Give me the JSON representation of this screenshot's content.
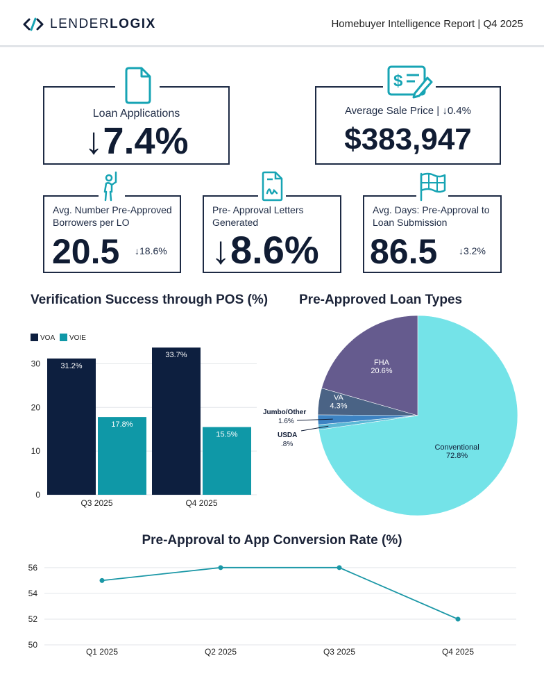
{
  "header": {
    "logo_word_1": "LENDER",
    "logo_word_2": "LOGIX",
    "report_title": "Homebuyer Intelligence Report | Q4 2025"
  },
  "kpis": {
    "loan_applications": {
      "label": "Loan Applications",
      "value": "↓7.4%",
      "icon": "document-icon"
    },
    "avg_sale_price": {
      "label": "Average Sale Price",
      "change": "| ↓0.4%",
      "value": "$383,947",
      "icon": "invoice-pen-icon"
    },
    "borrowers_per_lo": {
      "label": "Avg. Number Pre-Approved Borrowers per LO",
      "value": "20.5",
      "change": "↓18.6%",
      "icon": "person-raising-hand-icon"
    },
    "letters_generated": {
      "label": "Pre- Approval Letters Generated",
      "value": "↓8.6%",
      "icon": "signed-document-icon"
    },
    "days_to_submission": {
      "label": "Avg. Days: Pre-Approval to Loan Submission",
      "value": "86.5",
      "change": "↓3.2%",
      "icon": "finish-flag-icon"
    }
  },
  "colors": {
    "navy": "#0d1f3f",
    "teal": "#0f98a7",
    "cyan_light": "#74e3e8",
    "purple": "#655b8e",
    "slate_blue": "#4a6385",
    "mid_blue": "#3d83c3",
    "line_teal": "#1a97a6"
  },
  "chart_data": [
    {
      "type": "bar",
      "title": "Verification Success through POS (%)",
      "categories": [
        "Q3 2025",
        "Q4 2025"
      ],
      "series": [
        {
          "name": "VOA",
          "values": [
            31.2,
            33.7
          ],
          "labels": [
            "31.2%",
            "33.7%"
          ]
        },
        {
          "name": "VOIE",
          "values": [
            17.8,
            15.5
          ],
          "labels": [
            "17.8%",
            "15.5%"
          ]
        }
      ],
      "yticks": [
        "0",
        "10",
        "20",
        "30"
      ],
      "ylim": [
        0,
        35
      ],
      "legend": "top-left"
    },
    {
      "type": "pie",
      "title": "Pre-Approved Loan Types",
      "slices": [
        {
          "name": "Conventional",
          "value": 72.8,
          "label": "72.8%"
        },
        {
          "name": "USDA",
          "value": 0.8,
          "label": ".8%"
        },
        {
          "name": "Jumbo/Other",
          "value": 1.6,
          "label": "1.6%"
        },
        {
          "name": "VA",
          "value": 4.3,
          "label": "4.3%"
        },
        {
          "name": "FHA",
          "value": 20.6,
          "label": "20.6%"
        }
      ]
    },
    {
      "type": "line",
      "title": "Pre-Approval to App Conversion Rate (%)",
      "categories": [
        "Q1 2025",
        "Q2 2025",
        "Q3 2025",
        "Q4 2025"
      ],
      "values": [
        55,
        56,
        56,
        52
      ],
      "yticks": [
        "50",
        "52",
        "54",
        "56"
      ],
      "ylim": [
        50,
        56.8
      ]
    }
  ]
}
